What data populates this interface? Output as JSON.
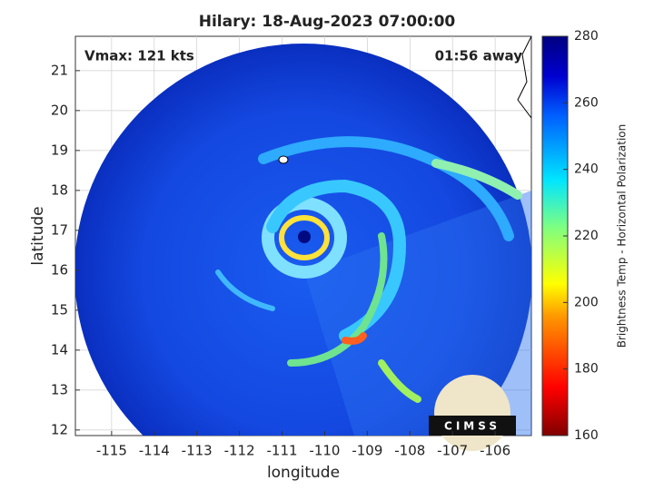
{
  "chart_data": {
    "type": "image",
    "title": "Hilary: 18-Aug-2023 07:00:00",
    "xlabel": "longitude",
    "ylabel": "latitude",
    "xlim": [
      -115.85,
      -105.15
    ],
    "ylim": [
      11.86,
      21.86
    ],
    "xticks": [
      -115,
      -114,
      -113,
      -112,
      -111,
      -110,
      -109,
      -108,
      -107,
      -106
    ],
    "yticks": [
      12,
      13,
      14,
      15,
      16,
      17,
      18,
      19,
      20,
      21
    ],
    "grid": true,
    "annotations": [
      "Vmax: 121 kts",
      "01:56 away"
    ],
    "colorbar": {
      "label": "Brightness Temp - Horizontal Polarization",
      "lim": [
        160,
        280
      ],
      "ticks": [
        160,
        180,
        200,
        220,
        240,
        260,
        280
      ]
    },
    "logo": "CIMSS"
  }
}
